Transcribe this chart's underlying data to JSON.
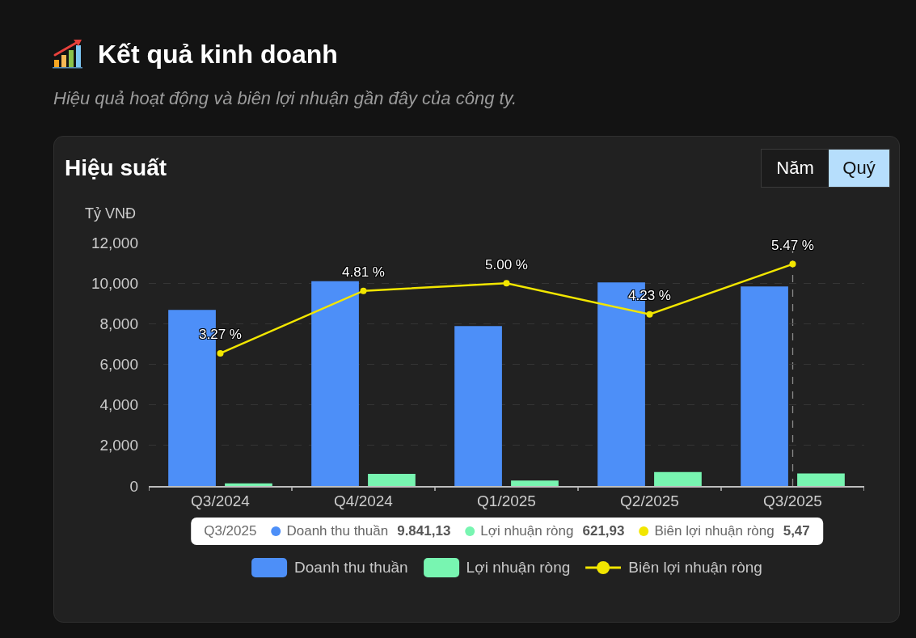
{
  "chart_data": {
    "type": "bar",
    "title": "Kết quả kinh doanh",
    "subtitle": "Hiệu quả hoạt động và biên lợi nhuận gần đây của công ty.",
    "ylabel": "Tỷ VNĐ",
    "annotations": [
      "Hiệu suất",
      "Năm",
      "Quý",
      "Q3/2025",
      "9.841,13",
      "621,93",
      "5,47"
    ],
    "categories": [
      "Q3/2024",
      "Q4/2024",
      "Q1/2025",
      "Q2/2025",
      "Q3/2025"
    ],
    "series": [
      {
        "name": "Doanh thu thuần",
        "color": "#4d8ff8",
        "values": [
          8680,
          10100,
          7880,
          10040,
          9841.13
        ]
      },
      {
        "name": "Lợi nhuận ròng",
        "color": "#78f5b1",
        "values": [
          130,
          600,
          270,
          690,
          621.93
        ]
      },
      {
        "name": "Biên lợi nhuận ròng",
        "type": "line",
        "axis": "y2",
        "color": "#f2e600",
        "marker": "circle",
        "values": [
          3.27,
          4.81,
          5.0,
          4.23,
          5.47
        ],
        "value_labels": [
          "3.27 %",
          "4.81 %",
          "5.00 %",
          "4.23 %",
          "5.47 %"
        ]
      }
    ],
    "ylim": [
      0,
      12000
    ],
    "yticks": [
      0,
      {
        "value": 2000,
        "label": "2,000"
      },
      {
        "value": 4000,
        "label": "4,000"
      },
      {
        "value": 6000,
        "label": "6,000"
      },
      {
        "value": 8000,
        "label": "8,000"
      },
      {
        "value": 10000,
        "label": "10,000"
      },
      {
        "value": 12000,
        "label": "12,000"
      }
    ],
    "y2lim": [
      0,
      6
    ],
    "tick_labels": "xy",
    "grid": "y",
    "legend": "bottom",
    "ref_lines": [
      {
        "axis": "x",
        "value": "Q3/2025",
        "color": "#8a8a8a",
        "line_style": "dashed"
      }
    ]
  }
}
